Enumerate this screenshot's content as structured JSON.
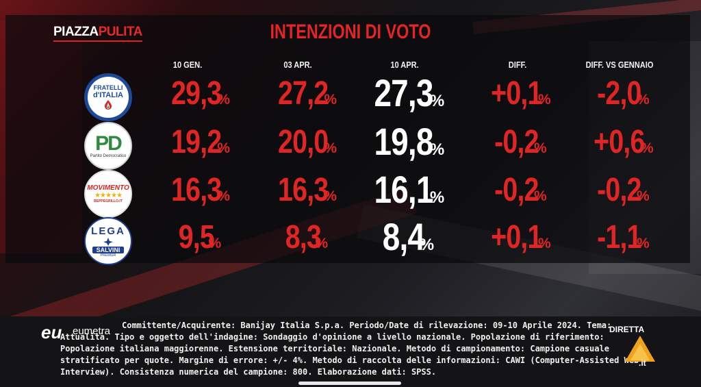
{
  "header": {
    "brand_part1": "PIAZZA",
    "brand_part2": "PULITA",
    "title": "INTENZIONI DI VOTO"
  },
  "columns": [
    "10 GEN.",
    "03 APR.",
    "10 APR.",
    "DIFF.",
    "DIFF. VS GENNAIO"
  ],
  "parties": [
    {
      "logo_lines": [
        "FRATELLI",
        "d'ITALIA"
      ],
      "logo_color": "#1f4a9a",
      "values": [
        "29,3",
        "27,2",
        "27,3",
        "+0,1",
        "-2,0"
      ]
    },
    {
      "logo_lines": [
        "PD",
        "Partito Democratico"
      ],
      "logo_color": "#2e8a3e",
      "values": [
        "19,2",
        "20,0",
        "19,8",
        "-0,2",
        "+0,6"
      ]
    },
    {
      "logo_lines": [
        "MOVIMENTO",
        "★★★★★",
        "BEPPEGRILLO.IT"
      ],
      "logo_color": "#d8261f",
      "values": [
        "16,3",
        "16,3",
        "16,1",
        "-0,2",
        "-0,2"
      ]
    },
    {
      "logo_lines": [
        "LEGA",
        "SALVINI",
        "PREMIER"
      ],
      "logo_color": "#1d3f8f",
      "values": [
        "9,5",
        "8,3",
        "8,4",
        "+0,1",
        "-1,1"
      ]
    }
  ],
  "percent_sign": "%",
  "footer": {
    "institute_mark": "eu",
    "institute_name": "eumetra",
    "methodology_note": "Committente/Acquirente: Banijay Italia S.p.a. Periodo/Date di rilevazione: 09-10 Aprile 2024. Tema: Attualità. Tipo e oggetto dell'indagine: Sondaggio d'opinione a livello nazionale. Popolazione di riferimento: Popolazione italiana maggiorenne. Estensione territoriale: Nazionale. Metodo di campionamento: Campione casuale stratificato per quote. Margine di errore: +/- 4%. Metodo di raccolta delle informazioni: CAWI (Computer-Assisted Web Interview). Consistenza numerica del campione: 800. Elaborazione dati: SPSS.",
    "channel_label": "DIRETTA",
    "channel_site": ".it"
  },
  "colors": {
    "accent_red": "#e02525",
    "current_white": "#ffffff"
  }
}
